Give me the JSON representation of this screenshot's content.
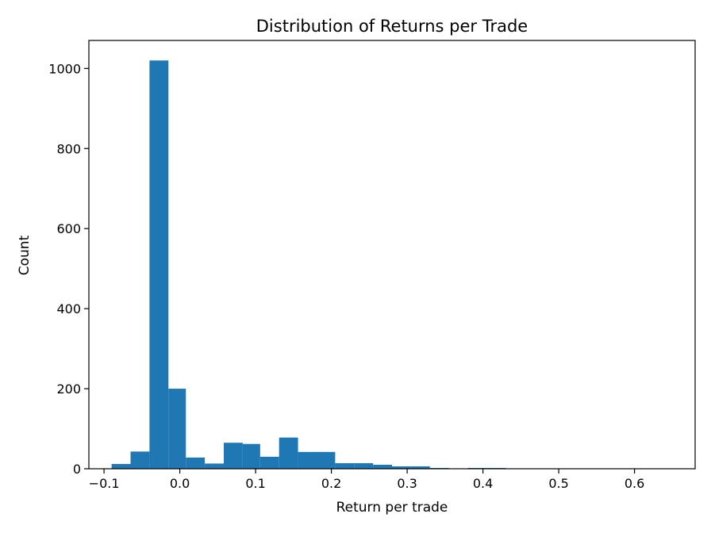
{
  "chart_data": {
    "type": "bar",
    "title": "Distribution of Returns per Trade",
    "xlabel": "Return per trade",
    "ylabel": "Count",
    "xlim": [
      -0.12,
      0.68
    ],
    "ylim": [
      0,
      1070
    ],
    "grid": false,
    "bar_color": "#1f77b4",
    "bin_edges": [
      -0.09,
      -0.065,
      -0.04,
      -0.015,
      0.008,
      0.033,
      0.058,
      0.083,
      0.106,
      0.131,
      0.156,
      0.18,
      0.205,
      0.23,
      0.255,
      0.28,
      0.305,
      0.33,
      0.355,
      0.38,
      0.405,
      0.43,
      0.455,
      0.48,
      0.505,
      0.53,
      0.555,
      0.58,
      0.605,
      0.63,
      0.655
    ],
    "values": [
      12,
      43,
      1020,
      200,
      28,
      13,
      65,
      62,
      30,
      78,
      42,
      42,
      14,
      14,
      10,
      6,
      6,
      2,
      1,
      2,
      2,
      1,
      1,
      1,
      1,
      1,
      1,
      1,
      1,
      1
    ],
    "xticks": [
      -0.1,
      0.0,
      0.1,
      0.2,
      0.3,
      0.4,
      0.5,
      0.6
    ],
    "xtick_labels": [
      "−0.1",
      "0.0",
      "0.1",
      "0.2",
      "0.3",
      "0.4",
      "0.5",
      "0.6"
    ],
    "yticks": [
      0,
      200,
      400,
      600,
      800,
      1000
    ],
    "ytick_labels": [
      "0",
      "200",
      "400",
      "600",
      "800",
      "1000"
    ]
  }
}
